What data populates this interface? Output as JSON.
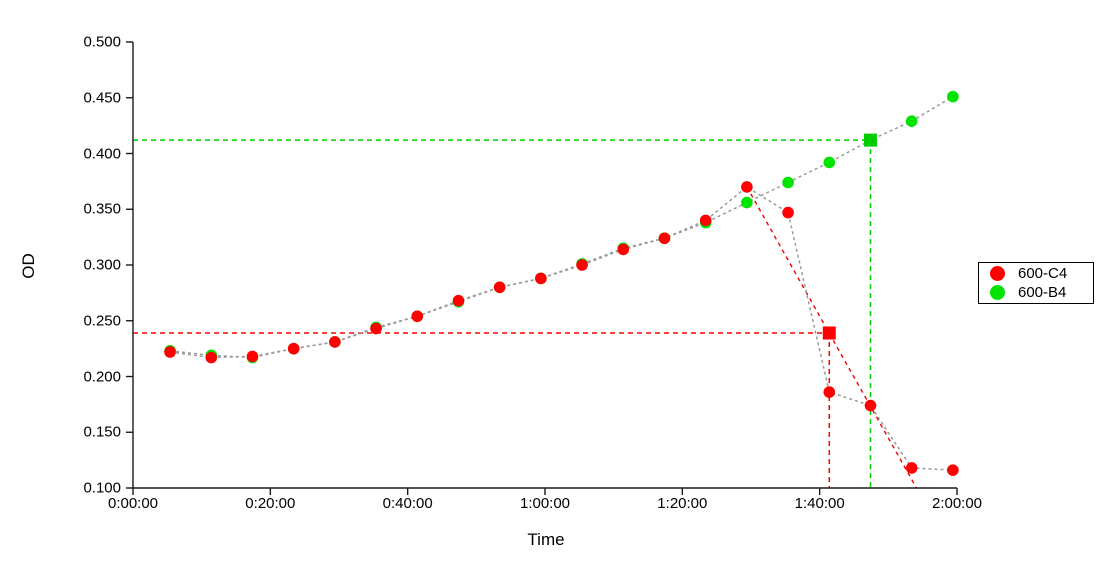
{
  "chart_data": {
    "type": "scatter",
    "title": "",
    "xlabel": "Time",
    "ylabel": "OD",
    "x_unit": "minutes",
    "xlim": [
      0,
      120
    ],
    "ylim": [
      0.1,
      0.5
    ],
    "grid": false,
    "x_ticks": {
      "values": [
        0,
        20,
        40,
        60,
        80,
        100,
        120
      ],
      "labels": [
        "0:00:00",
        "0:20:00",
        "0:40:00",
        "1:00:00",
        "1:20:00",
        "1:40:00",
        "2:00:00"
      ]
    },
    "y_ticks": {
      "values": [
        0.1,
        0.15,
        0.2,
        0.25,
        0.3,
        0.35,
        0.4,
        0.45,
        0.5
      ],
      "labels": [
        "0.100",
        "0.150",
        "0.200",
        "0.250",
        "0.300",
        "0.350",
        "0.400",
        "0.450",
        "0.500"
      ]
    },
    "connector_color": "#9a9a9a",
    "series": [
      {
        "name": "600-B4",
        "color": "#00e400",
        "marker": "circle",
        "square_marker_index": 17,
        "x": [
          5.4,
          11.4,
          17.4,
          23.4,
          29.4,
          35.4,
          41.4,
          47.4,
          53.4,
          59.4,
          65.4,
          71.4,
          77.4,
          83.4,
          89.4,
          95.4,
          101.4,
          107.4,
          113.4,
          119.4
        ],
        "y": [
          0.223,
          0.219,
          0.217,
          0.225,
          0.231,
          0.244,
          0.254,
          0.267,
          0.28,
          0.288,
          0.301,
          0.315,
          0.324,
          0.338,
          0.356,
          0.374,
          0.392,
          0.412,
          0.429,
          0.451
        ]
      },
      {
        "name": "600-C4",
        "color": "#ff0000",
        "marker": "circle",
        "square_marker_index": null,
        "x": [
          5.4,
          11.4,
          17.4,
          23.4,
          29.4,
          35.4,
          41.4,
          47.4,
          53.4,
          59.4,
          65.4,
          71.4,
          77.4,
          83.4,
          89.4,
          95.4,
          101.4,
          107.4,
          113.4,
          119.4
        ],
        "y": [
          0.222,
          0.217,
          0.218,
          0.225,
          0.231,
          0.243,
          0.254,
          0.268,
          0.28,
          0.288,
          0.3,
          0.314,
          0.324,
          0.34,
          0.37,
          0.347,
          0.186,
          0.174,
          0.118,
          0.116
        ]
      }
    ],
    "annotations": {
      "green_crosshair": {
        "color": "#00cc00",
        "x": 107.4,
        "y": 0.412,
        "marker": "square"
      },
      "red_crosshair": {
        "color": "#ff0000",
        "x": 101.4,
        "y": 0.239,
        "marker": "square"
      },
      "red_trend_line": {
        "color": "#ee0000",
        "x1": 89.4,
        "y1": 0.37,
        "x2": 114.1,
        "y2": 0.1
      }
    },
    "legend": {
      "position": "right",
      "items": [
        "600-C4",
        "600-B4"
      ],
      "item_colors": [
        "#ff0000",
        "#00e400"
      ]
    }
  }
}
